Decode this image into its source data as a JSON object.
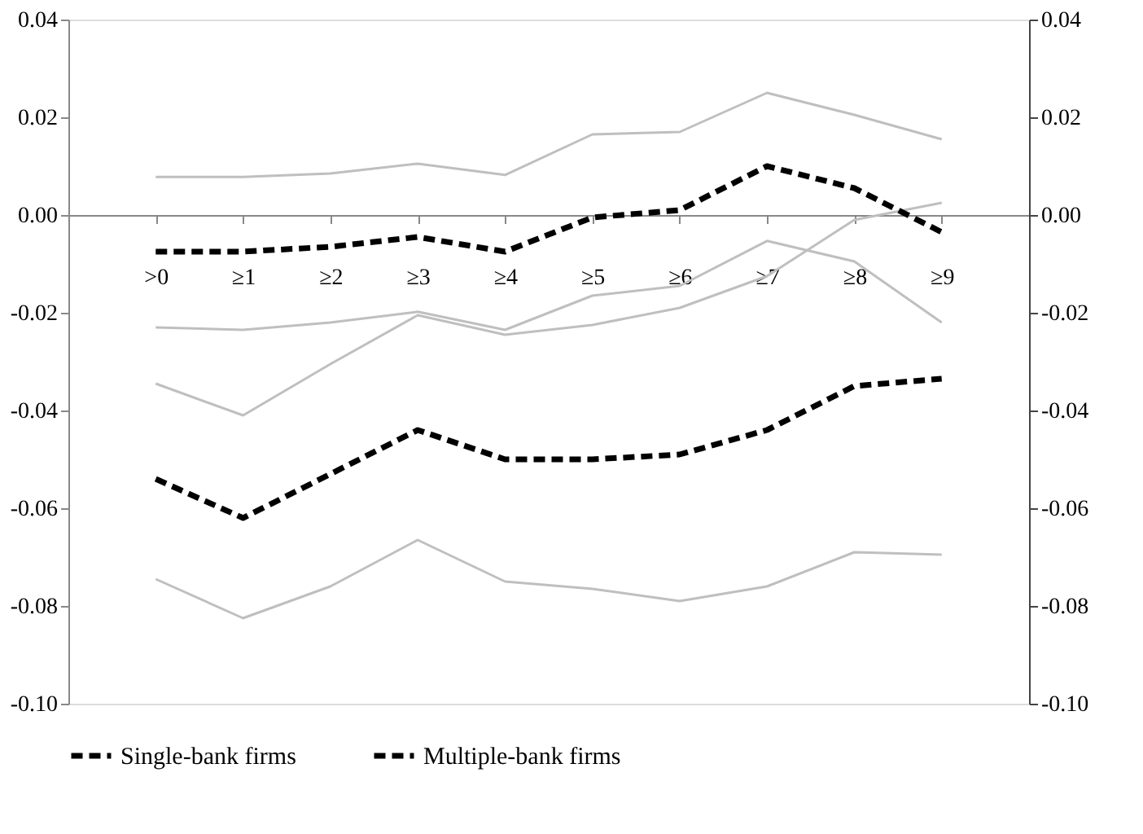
{
  "chart_data": {
    "type": "line",
    "categories": [
      ">0",
      "≥1",
      "≥2",
      "≥3",
      "≥4",
      "≥5",
      "≥6",
      "≥7",
      "≥8",
      "≥9"
    ],
    "series": [
      {
        "name": "Single-bank firms",
        "color": "#000000",
        "line_style": "dashed",
        "values": [
          -0.0075,
          -0.0075,
          -0.0065,
          -0.0045,
          -0.0075,
          -0.0005,
          0.001,
          0.01,
          0.0055,
          -0.0035
        ]
      },
      {
        "name": "Multiple-bank firms",
        "color": "#000000",
        "line_style": "dashed",
        "values": [
          -0.054,
          -0.062,
          -0.053,
          -0.044,
          -0.05,
          -0.05,
          -0.049,
          -0.044,
          -0.035,
          -0.0335
        ]
      },
      {
        "color": "#bfbfbf",
        "line_style": "solid",
        "values": [
          0.0078,
          0.0078,
          0.0085,
          0.0105,
          0.0082,
          0.0165,
          0.017,
          0.025,
          0.0205,
          0.0155
        ]
      },
      {
        "color": "#bfbfbf",
        "line_style": "solid",
        "values": [
          -0.023,
          -0.0235,
          -0.022,
          -0.0198,
          -0.0235,
          -0.0165,
          -0.0145,
          -0.0053,
          -0.0095,
          -0.022
        ]
      },
      {
        "color": "#bfbfbf",
        "line_style": "solid",
        "values": [
          -0.0345,
          -0.041,
          -0.0305,
          -0.0205,
          -0.0245,
          -0.0225,
          -0.019,
          -0.0125,
          -0.001,
          0.0025
        ]
      },
      {
        "color": "#bfbfbf",
        "line_style": "solid",
        "values": [
          -0.0745,
          -0.0825,
          -0.076,
          -0.0665,
          -0.075,
          -0.0765,
          -0.079,
          -0.076,
          -0.069,
          -0.0695
        ]
      }
    ],
    "ylim": [
      -0.1,
      0.04
    ],
    "yticks": [
      {
        "value": -0.1,
        "label": "-0.10"
      },
      {
        "value": -0.08,
        "label": "-0.08"
      },
      {
        "value": -0.06,
        "label": "-0.06"
      },
      {
        "value": -0.04,
        "label": "-0.04"
      },
      {
        "value": -0.02,
        "label": "-0.02"
      },
      {
        "value": 0.0,
        "label": "0.00"
      },
      {
        "value": 0.02,
        "label": "0.02"
      },
      {
        "value": 0.04,
        "label": "0.04"
      }
    ],
    "y2lim": [
      -0.1,
      0.04
    ],
    "y2ticks": [
      {
        "value": -0.1,
        "label": "-0.10"
      },
      {
        "value": -0.08,
        "label": "-0.08"
      },
      {
        "value": -0.06,
        "label": "-0.06"
      },
      {
        "value": -0.04,
        "label": "-0.04"
      },
      {
        "value": -0.02,
        "label": "-0.02"
      },
      {
        "value": 0.0,
        "label": "0.00"
      },
      {
        "value": 0.02,
        "label": "0.02"
      },
      {
        "value": 0.04,
        "label": "0.04"
      }
    ],
    "legend": "bottom"
  }
}
